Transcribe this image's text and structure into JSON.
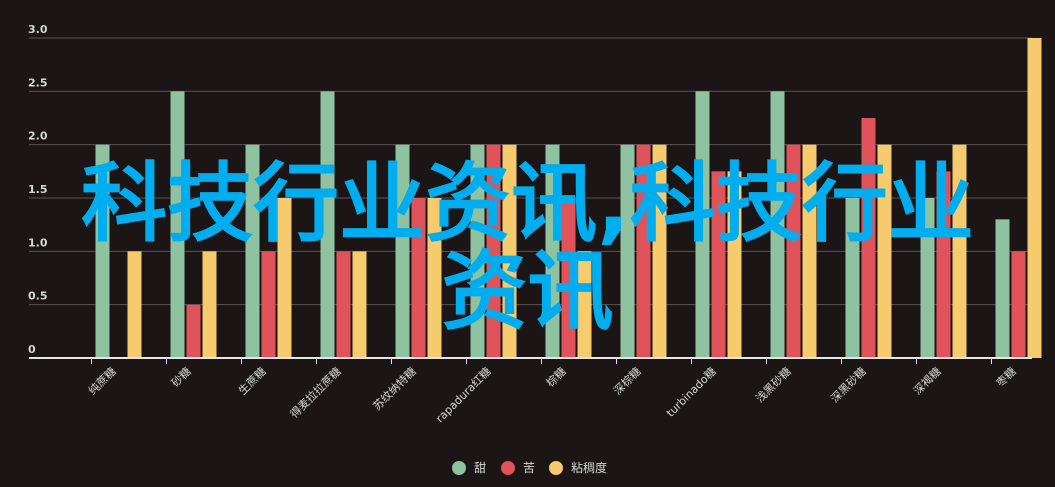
{
  "chart_data": {
    "type": "bar",
    "categories": [
      "纯蔗糖",
      "砂糖",
      "生蔗糖",
      "得麦拉拉蔗糖",
      "苏纹纳特糖",
      "rapadura红糖",
      "棕糖",
      "深棕糖",
      "turbinado糖",
      "浅黑砂糖",
      "深黑砂糖",
      "深褐糖",
      "枣糖"
    ],
    "series": [
      {
        "name": "甜",
        "color": "#8fc2a0",
        "values": [
          2.0,
          2.5,
          2.0,
          2.5,
          2.0,
          2.0,
          2.0,
          2.0,
          2.5,
          2.5,
          1.5,
          1.5,
          1.3
        ]
      },
      {
        "name": "苦",
        "color": "#e0535a",
        "values": [
          0,
          0.5,
          1.0,
          1.0,
          1.5,
          2.0,
          1.5,
          2.0,
          1.75,
          2.0,
          2.25,
          1.75,
          1.0
        ]
      },
      {
        "name": "粘稠度",
        "color": "#f5cb6e",
        "values": [
          1.0,
          1.0,
          1.5,
          1.0,
          1.5,
          2.0,
          1.0,
          2.0,
          1.75,
          2.0,
          2.0,
          2.0,
          3.0
        ]
      }
    ],
    "yticks": [
      "0",
      "0.5",
      "1.0",
      "1.5",
      "2.0",
      "2.5",
      "3.0"
    ],
    "ylim": [
      0,
      3.0
    ],
    "grid": true,
    "legend_position": "bottom"
  },
  "overlay": {
    "line1": "科技行业资讯,科技行业",
    "line2": "资讯"
  }
}
